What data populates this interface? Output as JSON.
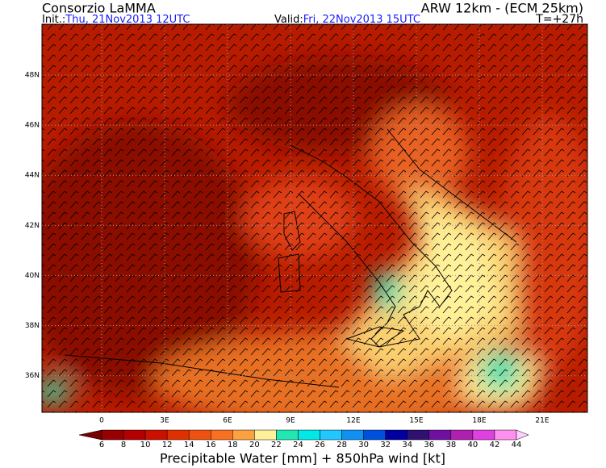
{
  "header": {
    "title": "Consorzio LaMMA",
    "model": "ARW 12km - (ECM 25km)",
    "init_label": "Init.:",
    "init_value": "Thu, 21Nov2013 12UTC",
    "valid_label": "Valid:",
    "valid_value": "Fri, 22Nov2013 15UTC",
    "lead": "T=+27h"
  },
  "map": {
    "lat_labels": [
      "48N",
      "46N",
      "44N",
      "42N",
      "40N",
      "38N",
      "36N"
    ],
    "lon_labels": [
      "0",
      "3E",
      "6E",
      "9E",
      "12E",
      "15E",
      "18E",
      "21E"
    ]
  },
  "colorbar": {
    "title": "Precipitable Water [mm] + 850hPa wind [kt]",
    "labels": [
      6,
      8,
      10,
      12,
      14,
      16,
      18,
      20,
      22,
      24,
      26,
      28,
      30,
      32,
      34,
      36,
      38,
      40,
      42,
      44
    ],
    "colors": [
      "#780000",
      "#960000",
      "#b40000",
      "#cc1000",
      "#e03000",
      "#f05010",
      "#f87020",
      "#fda040",
      "#fff09a",
      "#20e8b0",
      "#00e8e8",
      "#20c8ff",
      "#1090f0",
      "#0050e0",
      "#0000a0",
      "#301070",
      "#7010a0",
      "#b020b0",
      "#e040e0",
      "#ff90f0",
      "#ffd0ff"
    ]
  }
}
